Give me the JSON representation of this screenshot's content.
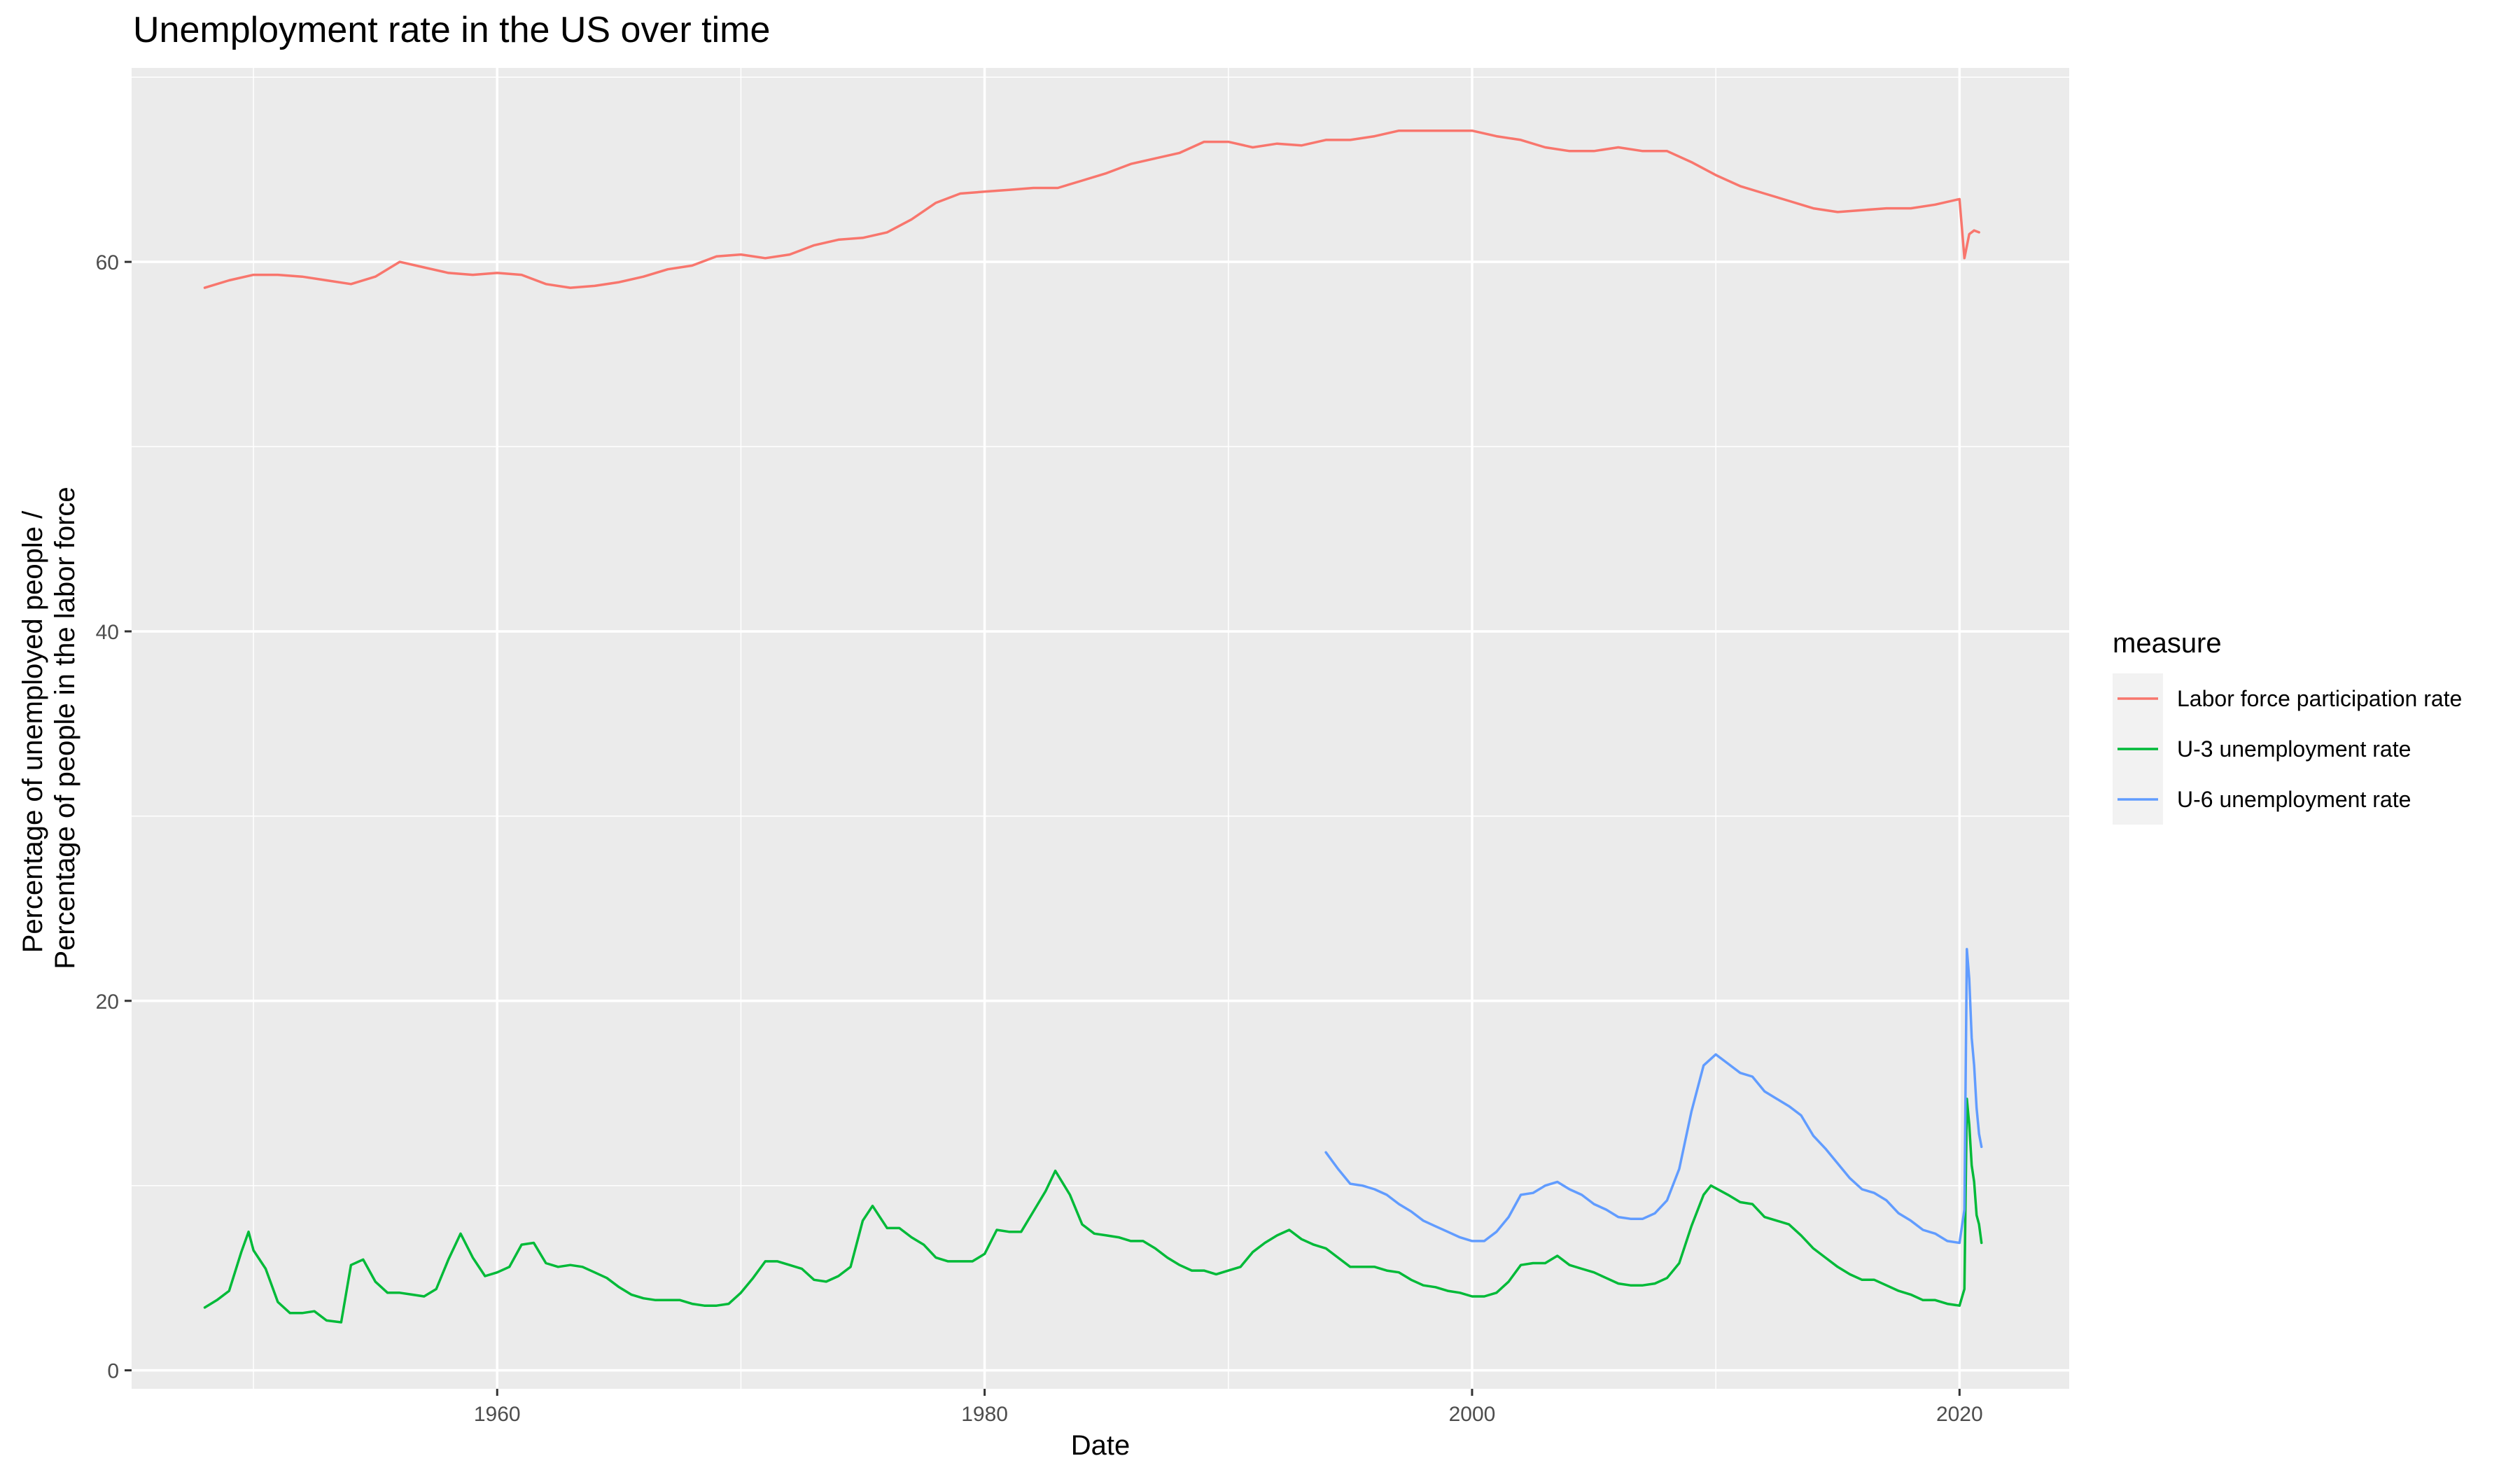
{
  "chart_data": {
    "type": "line",
    "title": "Unemployment rate in the US over time",
    "xlabel": "Date",
    "ylabel_lines": [
      "Percentage of unemployed people /",
      "Percentage of people in the labor force"
    ],
    "xlim": [
      1945,
      2024.5
    ],
    "ylim": [
      -1,
      70.5
    ],
    "x_ticks": [
      1960,
      1980,
      2000,
      2020
    ],
    "y_ticks": [
      0,
      20,
      40,
      60
    ],
    "grid": true,
    "legend_title": "measure",
    "legend_position": "right",
    "series": [
      {
        "name": "Labor force participation rate",
        "color": "#F8766D",
        "points": [
          [
            1948,
            58.6
          ],
          [
            1949,
            59.0
          ],
          [
            1950,
            59.3
          ],
          [
            1951,
            59.3
          ],
          [
            1952,
            59.2
          ],
          [
            1953,
            59.0
          ],
          [
            1954,
            58.8
          ],
          [
            1955,
            59.2
          ],
          [
            1956,
            60.0
          ],
          [
            1957,
            59.7
          ],
          [
            1958,
            59.4
          ],
          [
            1959,
            59.3
          ],
          [
            1960,
            59.4
          ],
          [
            1961,
            59.3
          ],
          [
            1962,
            58.8
          ],
          [
            1963,
            58.6
          ],
          [
            1964,
            58.7
          ],
          [
            1965,
            58.9
          ],
          [
            1966,
            59.2
          ],
          [
            1967,
            59.6
          ],
          [
            1968,
            59.8
          ],
          [
            1969,
            60.3
          ],
          [
            1970,
            60.4
          ],
          [
            1971,
            60.2
          ],
          [
            1972,
            60.4
          ],
          [
            1973,
            60.9
          ],
          [
            1974,
            61.2
          ],
          [
            1975,
            61.3
          ],
          [
            1976,
            61.6
          ],
          [
            1977,
            62.3
          ],
          [
            1978,
            63.2
          ],
          [
            1979,
            63.7
          ],
          [
            1980,
            63.8
          ],
          [
            1981,
            63.9
          ],
          [
            1982,
            64.0
          ],
          [
            1983,
            64.0
          ],
          [
            1984,
            64.4
          ],
          [
            1985,
            64.8
          ],
          [
            1986,
            65.3
          ],
          [
            1987,
            65.6
          ],
          [
            1988,
            65.9
          ],
          [
            1989,
            66.5
          ],
          [
            1990,
            66.5
          ],
          [
            1991,
            66.2
          ],
          [
            1992,
            66.4
          ],
          [
            1993,
            66.3
          ],
          [
            1994,
            66.6
          ],
          [
            1995,
            66.6
          ],
          [
            1996,
            66.8
          ],
          [
            1997,
            67.1
          ],
          [
            1998,
            67.1
          ],
          [
            1999,
            67.1
          ],
          [
            2000,
            67.1
          ],
          [
            2001,
            66.8
          ],
          [
            2002,
            66.6
          ],
          [
            2003,
            66.2
          ],
          [
            2004,
            66.0
          ],
          [
            2005,
            66.0
          ],
          [
            2006,
            66.2
          ],
          [
            2007,
            66.0
          ],
          [
            2008,
            66.0
          ],
          [
            2009,
            65.4
          ],
          [
            2010,
            64.7
          ],
          [
            2011,
            64.1
          ],
          [
            2012,
            63.7
          ],
          [
            2013,
            63.3
          ],
          [
            2014,
            62.9
          ],
          [
            2015,
            62.7
          ],
          [
            2016,
            62.8
          ],
          [
            2017,
            62.9
          ],
          [
            2018,
            62.9
          ],
          [
            2019,
            63.1
          ],
          [
            2020.0,
            63.4
          ],
          [
            2020.2,
            60.2
          ],
          [
            2020.4,
            61.5
          ],
          [
            2020.6,
            61.7
          ],
          [
            2020.8,
            61.6
          ]
        ]
      },
      {
        "name": "U-3 unemployment rate",
        "color": "#00BA38",
        "points": [
          [
            1948,
            3.4
          ],
          [
            1948.5,
            3.8
          ],
          [
            1949,
            4.3
          ],
          [
            1949.5,
            6.4
          ],
          [
            1949.8,
            7.5
          ],
          [
            1950,
            6.5
          ],
          [
            1950.5,
            5.5
          ],
          [
            1951,
            3.7
          ],
          [
            1951.5,
            3.1
          ],
          [
            1952,
            3.1
          ],
          [
            1952.5,
            3.2
          ],
          [
            1953,
            2.7
          ],
          [
            1953.6,
            2.6
          ],
          [
            1954,
            5.7
          ],
          [
            1954.5,
            6.0
          ],
          [
            1955,
            4.8
          ],
          [
            1955.5,
            4.2
          ],
          [
            1956,
            4.2
          ],
          [
            1956.5,
            4.1
          ],
          [
            1957,
            4.0
          ],
          [
            1957.5,
            4.4
          ],
          [
            1958,
            6.0
          ],
          [
            1958.5,
            7.4
          ],
          [
            1959,
            6.1
          ],
          [
            1959.5,
            5.1
          ],
          [
            1960,
            5.3
          ],
          [
            1960.5,
            5.6
          ],
          [
            1961,
            6.8
          ],
          [
            1961.5,
            6.9
          ],
          [
            1962,
            5.8
          ],
          [
            1962.5,
            5.6
          ],
          [
            1963,
            5.7
          ],
          [
            1963.5,
            5.6
          ],
          [
            1964,
            5.3
          ],
          [
            1964.5,
            5.0
          ],
          [
            1965,
            4.5
          ],
          [
            1965.5,
            4.1
          ],
          [
            1966,
            3.9
          ],
          [
            1966.5,
            3.8
          ],
          [
            1967,
            3.8
          ],
          [
            1967.5,
            3.8
          ],
          [
            1968,
            3.6
          ],
          [
            1968.5,
            3.5
          ],
          [
            1969,
            3.5
          ],
          [
            1969.5,
            3.6
          ],
          [
            1970,
            4.2
          ],
          [
            1970.5,
            5.0
          ],
          [
            1971,
            5.9
          ],
          [
            1971.5,
            5.9
          ],
          [
            1972,
            5.7
          ],
          [
            1972.5,
            5.5
          ],
          [
            1973,
            4.9
          ],
          [
            1973.5,
            4.8
          ],
          [
            1974,
            5.1
          ],
          [
            1974.5,
            5.6
          ],
          [
            1975,
            8.1
          ],
          [
            1975.4,
            8.9
          ],
          [
            1976,
            7.7
          ],
          [
            1976.5,
            7.7
          ],
          [
            1977,
            7.2
          ],
          [
            1977.5,
            6.8
          ],
          [
            1978,
            6.1
          ],
          [
            1978.5,
            5.9
          ],
          [
            1979,
            5.9
          ],
          [
            1979.5,
            5.9
          ],
          [
            1980,
            6.3
          ],
          [
            1980.5,
            7.6
          ],
          [
            1981,
            7.5
          ],
          [
            1981.5,
            7.5
          ],
          [
            1982,
            8.6
          ],
          [
            1982.5,
            9.7
          ],
          [
            1982.9,
            10.8
          ],
          [
            1983.5,
            9.5
          ],
          [
            1984,
            7.9
          ],
          [
            1984.5,
            7.4
          ],
          [
            1985,
            7.3
          ],
          [
            1985.5,
            7.2
          ],
          [
            1986,
            7.0
          ],
          [
            1986.5,
            7.0
          ],
          [
            1987,
            6.6
          ],
          [
            1987.5,
            6.1
          ],
          [
            1988,
            5.7
          ],
          [
            1988.5,
            5.4
          ],
          [
            1989,
            5.4
          ],
          [
            1989.5,
            5.2
          ],
          [
            1990,
            5.4
          ],
          [
            1990.5,
            5.6
          ],
          [
            1991,
            6.4
          ],
          [
            1991.5,
            6.9
          ],
          [
            1992,
            7.3
          ],
          [
            1992.5,
            7.6
          ],
          [
            1993,
            7.1
          ],
          [
            1993.5,
            6.8
          ],
          [
            1994,
            6.6
          ],
          [
            1994.5,
            6.1
          ],
          [
            1995,
            5.6
          ],
          [
            1995.5,
            5.6
          ],
          [
            1996,
            5.6
          ],
          [
            1996.5,
            5.4
          ],
          [
            1997,
            5.3
          ],
          [
            1997.5,
            4.9
          ],
          [
            1998,
            4.6
          ],
          [
            1998.5,
            4.5
          ],
          [
            1999,
            4.3
          ],
          [
            1999.5,
            4.2
          ],
          [
            2000,
            4.0
          ],
          [
            2000.5,
            4.0
          ],
          [
            2001,
            4.2
          ],
          [
            2001.5,
            4.8
          ],
          [
            2002,
            5.7
          ],
          [
            2002.5,
            5.8
          ],
          [
            2003,
            5.8
          ],
          [
            2003.5,
            6.2
          ],
          [
            2004,
            5.7
          ],
          [
            2004.5,
            5.5
          ],
          [
            2005,
            5.3
          ],
          [
            2005.5,
            5.0
          ],
          [
            2006,
            4.7
          ],
          [
            2006.5,
            4.6
          ],
          [
            2007,
            4.6
          ],
          [
            2007.5,
            4.7
          ],
          [
            2008,
            5.0
          ],
          [
            2008.5,
            5.8
          ],
          [
            2009,
            7.8
          ],
          [
            2009.5,
            9.5
          ],
          [
            2009.8,
            10.0
          ],
          [
            2010.5,
            9.5
          ],
          [
            2011,
            9.1
          ],
          [
            2011.5,
            9.0
          ],
          [
            2012,
            8.3
          ],
          [
            2012.5,
            8.1
          ],
          [
            2013,
            7.9
          ],
          [
            2013.5,
            7.3
          ],
          [
            2014,
            6.6
          ],
          [
            2014.5,
            6.1
          ],
          [
            2015,
            5.6
          ],
          [
            2015.5,
            5.2
          ],
          [
            2016,
            4.9
          ],
          [
            2016.5,
            4.9
          ],
          [
            2017,
            4.6
          ],
          [
            2017.5,
            4.3
          ],
          [
            2018,
            4.1
          ],
          [
            2018.5,
            3.8
          ],
          [
            2019,
            3.8
          ],
          [
            2019.5,
            3.6
          ],
          [
            2020.0,
            3.5
          ],
          [
            2020.2,
            4.4
          ],
          [
            2020.3,
            14.7
          ],
          [
            2020.4,
            13.3
          ],
          [
            2020.5,
            11.1
          ],
          [
            2020.6,
            10.2
          ],
          [
            2020.7,
            8.4
          ],
          [
            2020.8,
            7.9
          ],
          [
            2020.9,
            6.9
          ]
        ]
      },
      {
        "name": "U-6 unemployment rate",
        "color": "#619CFF",
        "points": [
          [
            1994,
            11.8
          ],
          [
            1994.5,
            10.9
          ],
          [
            1995,
            10.1
          ],
          [
            1995.5,
            10.0
          ],
          [
            1996,
            9.8
          ],
          [
            1996.5,
            9.5
          ],
          [
            1997,
            9.0
          ],
          [
            1997.5,
            8.6
          ],
          [
            1998,
            8.1
          ],
          [
            1998.5,
            7.8
          ],
          [
            1999,
            7.5
          ],
          [
            1999.5,
            7.2
          ],
          [
            2000,
            7.0
          ],
          [
            2000.5,
            7.0
          ],
          [
            2001,
            7.5
          ],
          [
            2001.5,
            8.3
          ],
          [
            2002,
            9.5
          ],
          [
            2002.5,
            9.6
          ],
          [
            2003,
            10.0
          ],
          [
            2003.5,
            10.2
          ],
          [
            2004,
            9.8
          ],
          [
            2004.5,
            9.5
          ],
          [
            2005,
            9.0
          ],
          [
            2005.5,
            8.7
          ],
          [
            2006,
            8.3
          ],
          [
            2006.5,
            8.2
          ],
          [
            2007,
            8.2
          ],
          [
            2007.5,
            8.5
          ],
          [
            2008,
            9.2
          ],
          [
            2008.5,
            10.9
          ],
          [
            2009,
            14.0
          ],
          [
            2009.5,
            16.5
          ],
          [
            2010,
            17.1
          ],
          [
            2010.5,
            16.6
          ],
          [
            2011,
            16.1
          ],
          [
            2011.5,
            15.9
          ],
          [
            2012,
            15.1
          ],
          [
            2012.5,
            14.7
          ],
          [
            2013,
            14.3
          ],
          [
            2013.5,
            13.8
          ],
          [
            2014,
            12.7
          ],
          [
            2014.5,
            12.0
          ],
          [
            2015,
            11.2
          ],
          [
            2015.5,
            10.4
          ],
          [
            2016,
            9.8
          ],
          [
            2016.5,
            9.6
          ],
          [
            2017,
            9.2
          ],
          [
            2017.5,
            8.5
          ],
          [
            2018,
            8.1
          ],
          [
            2018.5,
            7.6
          ],
          [
            2019,
            7.4
          ],
          [
            2019.5,
            7.0
          ],
          [
            2020.0,
            6.9
          ],
          [
            2020.2,
            8.7
          ],
          [
            2020.3,
            22.8
          ],
          [
            2020.4,
            21.2
          ],
          [
            2020.5,
            18.0
          ],
          [
            2020.6,
            16.5
          ],
          [
            2020.7,
            14.2
          ],
          [
            2020.8,
            12.8
          ],
          [
            2020.9,
            12.1
          ]
        ]
      }
    ]
  }
}
